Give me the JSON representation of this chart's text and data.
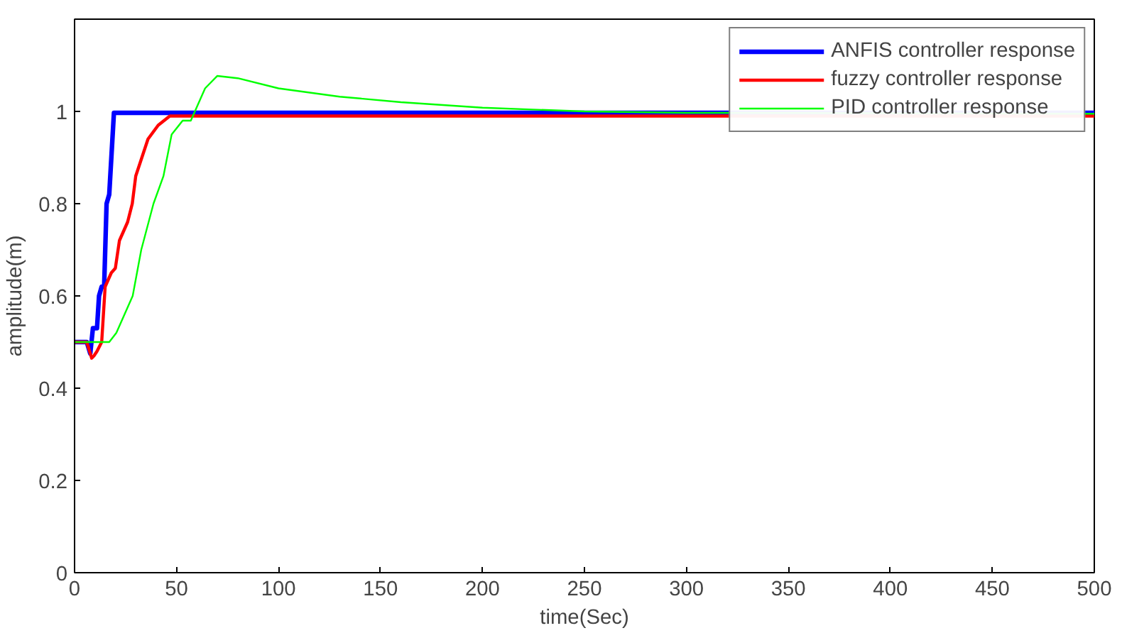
{
  "chart_data": {
    "type": "line",
    "xlabel": "time(Sec)",
    "ylabel": "amplitude(m)",
    "xlim": [
      0,
      500
    ],
    "ylim": [
      0,
      1.2
    ],
    "xticks": [
      0,
      50,
      100,
      150,
      200,
      250,
      300,
      350,
      400,
      450,
      500
    ],
    "yticks": [
      0,
      0.2,
      0.4,
      0.6,
      0.8,
      1
    ],
    "grid": false,
    "legend": "top right",
    "marker": "none",
    "line_style": "solid",
    "series": [
      {
        "name": "ANFIS controller response",
        "color": "#0000ff",
        "x": [
          0,
          6,
          7.7,
          9,
          11,
          12,
          13.3,
          14.5,
          15.7,
          17,
          19.3,
          500
        ],
        "values": [
          0.5,
          0.5,
          0.475,
          0.53,
          0.53,
          0.6,
          0.62,
          0.62,
          0.8,
          0.82,
          0.997,
          0.997
        ]
      },
      {
        "name": "fuzzy controller response",
        "color": "#ff0000",
        "x": [
          0,
          6,
          8.4,
          9.5,
          11,
          13.3,
          15,
          18,
          20,
          22,
          26,
          28.3,
          30,
          36,
          41,
          46.7,
          500
        ],
        "values": [
          0.5,
          0.5,
          0.465,
          0.47,
          0.48,
          0.5,
          0.62,
          0.65,
          0.66,
          0.72,
          0.76,
          0.8,
          0.86,
          0.94,
          0.97,
          0.99,
          0.99
        ]
      },
      {
        "name": "PID controller response",
        "color": "#00ff00",
        "x": [
          0,
          17,
          20.5,
          28.5,
          32.7,
          38.7,
          43.6,
          47.6,
          53,
          57,
          59,
          64,
          70,
          80,
          100,
          130,
          160,
          200,
          250,
          300,
          500
        ],
        "values": [
          0.5,
          0.5,
          0.52,
          0.6,
          0.7,
          0.8,
          0.86,
          0.95,
          0.98,
          0.98,
          1.0,
          1.05,
          1.077,
          1.072,
          1.05,
          1.032,
          1.02,
          1.008,
          1.0,
          0.997,
          0.995
        ]
      }
    ]
  }
}
